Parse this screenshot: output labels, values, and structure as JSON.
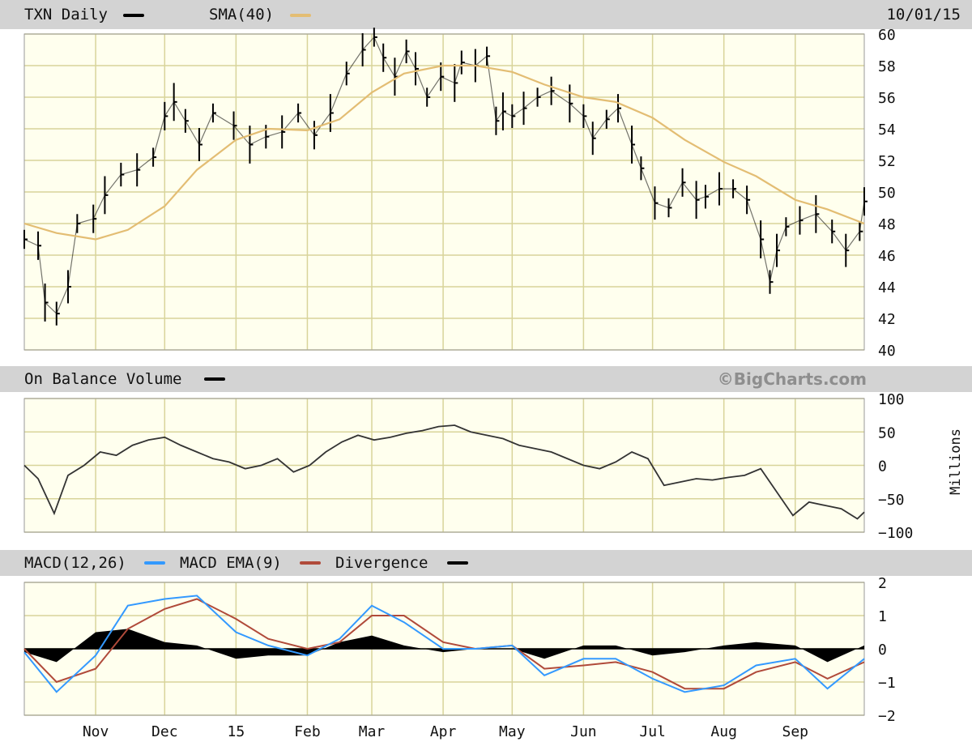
{
  "header": {
    "ticker_label": "TXN Daily",
    "sma_label": "SMA(40)",
    "date": "10/01/15"
  },
  "obv_header": {
    "label": "On Balance Volume",
    "brand": "©BigCharts.com",
    "unit_label": "Millions"
  },
  "macd_header": {
    "macd_label": "MACD(12,26)",
    "ema_label": "MACD EMA(9)",
    "div_label": "Divergence"
  },
  "colors": {
    "background": "#ffffee",
    "grid": "#d8d49a",
    "price_bars": "#000000",
    "sma": "#e3bd73",
    "obv": "#333333",
    "macd": "#3399ff",
    "macd_ema": "#b04a3a",
    "divergence": "#000000",
    "strip": "#d3d3d3"
  },
  "chart_data": [
    {
      "type": "line",
      "panel": "price",
      "title": "TXN Daily",
      "x_start": "2015-10-01 minus 1 year",
      "xticks": [
        "Nov",
        "Dec",
        "15",
        "Feb",
        "Mar",
        "Apr",
        "May",
        "Jun",
        "Jul",
        "Aug",
        "Sep"
      ],
      "ylim": [
        40,
        60
      ],
      "yticks": [
        40,
        42,
        44,
        46,
        48,
        50,
        52,
        54,
        56,
        58,
        60
      ],
      "series": [
        {
          "name": "TXN Daily",
          "style": "ohlc-bars",
          "x": [
            "Oct 1",
            "Oct 7",
            "Oct 10",
            "Oct 15",
            "Oct 20",
            "Oct 24",
            "Oct 31",
            "Nov 5",
            "Nov 12",
            "Nov 19",
            "Nov 26",
            "Dec 1",
            "Dec 5",
            "Dec 10",
            "Dec 16",
            "Dec 22",
            "Dec 31",
            "Jan 7",
            "Jan 14",
            "Jan 21",
            "Jan 28",
            "Feb 4",
            "Feb 11",
            "Feb 18",
            "Feb 25",
            "Mar 2",
            "Mar 6",
            "Mar 11",
            "Mar 16",
            "Mar 20",
            "Mar 25",
            "Mar 31",
            "Apr 6",
            "Apr 9",
            "Apr 15",
            "Apr 20",
            "Apr 24",
            "Apr 27",
            "May 1",
            "May 6",
            "May 12",
            "May 18",
            "May 26",
            "Jun 1",
            "Jun 5",
            "Jun 11",
            "Jun 16",
            "Jun 22",
            "Jun 26",
            "Jul 2",
            "Jul 8",
            "Jul 14",
            "Jul 20",
            "Jul 24",
            "Jul 30",
            "Aug 5",
            "Aug 11",
            "Aug 17",
            "Aug 21",
            "Aug 24",
            "Aug 28",
            "Sep 3",
            "Sep 10",
            "Sep 17",
            "Sep 23",
            "Sep 29",
            "Oct 1"
          ],
          "y": [
            47.0,
            46.6,
            43.0,
            42.3,
            44.0,
            48.0,
            48.3,
            49.8,
            51.1,
            51.4,
            52.2,
            54.8,
            55.7,
            54.5,
            53.0,
            55.0,
            54.2,
            53.0,
            53.5,
            53.8,
            55.0,
            53.6,
            55.0,
            57.5,
            59.0,
            59.8,
            58.5,
            57.3,
            58.9,
            57.8,
            56.0,
            57.3,
            56.9,
            58.2,
            58.0,
            58.6,
            54.5,
            55.1,
            54.8,
            55.3,
            56.0,
            56.4,
            55.6,
            54.8,
            53.4,
            54.6,
            55.3,
            53.0,
            51.5,
            49.3,
            49.0,
            50.6,
            49.5,
            49.7,
            50.2,
            50.2,
            49.5,
            47.0,
            44.3,
            46.3,
            47.8,
            48.2,
            48.6,
            47.5,
            46.3,
            47.5,
            49.4
          ]
        },
        {
          "name": "SMA(40)",
          "x": [
            "Oct 1",
            "Oct 15",
            "Nov 1",
            "Nov 15",
            "Dec 1",
            "Dec 15",
            "Jan 1",
            "Jan 15",
            "Feb 1",
            "Feb 15",
            "Mar 1",
            "Mar 15",
            "Apr 1",
            "Apr 15",
            "May 1",
            "May 15",
            "Jun 1",
            "Jun 15",
            "Jul 1",
            "Jul 15",
            "Aug 1",
            "Aug 15",
            "Sep 1",
            "Sep 15",
            "Oct 1"
          ],
          "y": [
            48.0,
            47.4,
            47.0,
            47.6,
            49.1,
            51.4,
            53.3,
            54.0,
            53.9,
            54.6,
            56.3,
            57.5,
            58.0,
            58.0,
            57.6,
            56.8,
            56.0,
            55.7,
            54.7,
            53.3,
            51.9,
            51.0,
            49.5,
            48.9,
            48.0
          ]
        }
      ]
    },
    {
      "type": "line",
      "panel": "obv",
      "title": "On Balance Volume",
      "ylabel": "Millions",
      "ylim": [
        -100,
        100
      ],
      "yticks": [
        -100,
        -50,
        0,
        50,
        100
      ],
      "series": [
        {
          "name": "On Balance Volume",
          "x": [
            "Oct 1",
            "Oct 7",
            "Oct 14",
            "Oct 20",
            "Oct 27",
            "Nov 3",
            "Nov 10",
            "Nov 17",
            "Nov 24",
            "Dec 1",
            "Dec 8",
            "Dec 15",
            "Dec 22",
            "Dec 29",
            "Jan 5",
            "Jan 12",
            "Jan 19",
            "Jan 26",
            "Feb 2",
            "Feb 9",
            "Feb 16",
            "Feb 23",
            "Mar 2",
            "Mar 9",
            "Mar 16",
            "Mar 23",
            "Mar 30",
            "Apr 6",
            "Apr 13",
            "Apr 20",
            "Apr 27",
            "May 4",
            "May 11",
            "May 18",
            "May 25",
            "Jun 1",
            "Jun 8",
            "Jun 15",
            "Jun 22",
            "Jun 29",
            "Jul 6",
            "Jul 13",
            "Jul 20",
            "Jul 27",
            "Aug 3",
            "Aug 10",
            "Aug 17",
            "Aug 24",
            "Aug 31",
            "Sep 7",
            "Sep 14",
            "Sep 21",
            "Sep 28",
            "Oct 1"
          ],
          "y": [
            0,
            -20,
            -72,
            -15,
            0,
            20,
            15,
            30,
            38,
            42,
            30,
            20,
            10,
            5,
            -5,
            0,
            10,
            -10,
            0,
            20,
            35,
            45,
            38,
            42,
            48,
            52,
            58,
            60,
            50,
            45,
            40,
            30,
            25,
            20,
            10,
            0,
            -5,
            5,
            20,
            10,
            -30,
            -25,
            -20,
            -22,
            -18,
            -15,
            -5,
            -40,
            -75,
            -55,
            -60,
            -65,
            -80,
            -70
          ]
        }
      ]
    },
    {
      "type": "line",
      "panel": "macd",
      "title": "MACD(12,26)",
      "ylim": [
        -2,
        2
      ],
      "yticks": [
        -2,
        -1,
        0,
        1,
        2
      ],
      "series": [
        {
          "name": "MACD(12,26)",
          "x": [
            "Oct 1",
            "Oct 15",
            "Nov 1",
            "Nov 15",
            "Dec 1",
            "Dec 15",
            "Jan 1",
            "Jan 15",
            "Feb 1",
            "Feb 15",
            "Mar 1",
            "Mar 15",
            "Apr 1",
            "Apr 15",
            "May 1",
            "May 15",
            "Jun 1",
            "Jun 15",
            "Jul 1",
            "Jul 15",
            "Aug 1",
            "Aug 15",
            "Sep 1",
            "Sep 15",
            "Oct 1"
          ],
          "y": [
            -0.1,
            -1.3,
            -0.2,
            1.3,
            1.5,
            1.6,
            0.5,
            0.1,
            -0.2,
            0.3,
            1.3,
            0.8,
            0.0,
            0.0,
            0.1,
            -0.8,
            -0.3,
            -0.3,
            -0.9,
            -1.3,
            -1.1,
            -0.5,
            -0.3,
            -1.2,
            -0.3
          ]
        },
        {
          "name": "MACD EMA(9)",
          "x": [
            "Oct 1",
            "Oct 15",
            "Nov 1",
            "Nov 15",
            "Dec 1",
            "Dec 15",
            "Jan 1",
            "Jan 15",
            "Feb 1",
            "Feb 15",
            "Mar 1",
            "Mar 15",
            "Apr 1",
            "Apr 15",
            "May 1",
            "May 15",
            "Jun 1",
            "Jun 15",
            "Jul 1",
            "Jul 15",
            "Aug 1",
            "Aug 15",
            "Sep 1",
            "Sep 15",
            "Oct 1"
          ],
          "y": [
            0.0,
            -1.0,
            -0.6,
            0.6,
            1.2,
            1.5,
            0.9,
            0.3,
            0.0,
            0.2,
            1.0,
            1.0,
            0.2,
            0.0,
            0.1,
            -0.6,
            -0.5,
            -0.4,
            -0.7,
            -1.2,
            -1.2,
            -0.7,
            -0.4,
            -0.9,
            -0.4
          ]
        },
        {
          "name": "Divergence",
          "style": "histogram",
          "x": [
            "Oct 1",
            "Oct 15",
            "Nov 1",
            "Nov 15",
            "Dec 1",
            "Dec 15",
            "Jan 1",
            "Jan 15",
            "Feb 1",
            "Feb 15",
            "Mar 1",
            "Mar 15",
            "Apr 1",
            "Apr 15",
            "May 1",
            "May 15",
            "Jun 1",
            "Jun 15",
            "Jul 1",
            "Jul 15",
            "Aug 1",
            "Aug 15",
            "Sep 1",
            "Sep 15",
            "Oct 1"
          ],
          "y": [
            -0.1,
            -0.4,
            0.5,
            0.6,
            0.2,
            0.1,
            -0.3,
            -0.2,
            -0.2,
            0.2,
            0.4,
            0.1,
            -0.1,
            0.0,
            0.0,
            -0.3,
            0.1,
            0.1,
            -0.2,
            -0.1,
            0.1,
            0.2,
            0.1,
            -0.4,
            0.1
          ]
        }
      ]
    }
  ]
}
